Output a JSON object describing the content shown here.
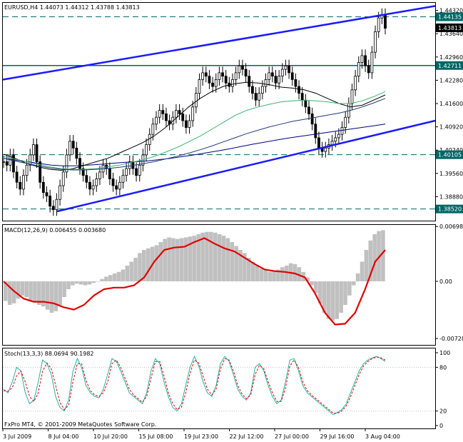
{
  "header": {
    "main": "EURUSD,H4  1.44073 1.44312 1.43788 1.43813",
    "macd": "MACD(12,26,9) 0.006455 0.003680",
    "stoch": "Stoch(13,3,3) 88.0694 90.1982",
    "copyright": "FxPro MT4, © 2001-2009 MetaQuotes Software Corp."
  },
  "chart_data": [
    {
      "type": "candlestick",
      "symbol": "EURUSD",
      "timeframe": "H4",
      "ylim": [
        1.382,
        1.445
      ],
      "ticks": [
        1.4432,
        1.4364,
        1.4296,
        1.4228,
        1.416,
        1.4092,
        1.4024,
        1.3956,
        1.3888
      ],
      "tick_labels": [
        "1.44320",
        "1.43640",
        "1.42960",
        "1.42280",
        "1.41600",
        "1.40920",
        "1.40240",
        "1.39560",
        "1.38880"
      ],
      "price_tags": [
        {
          "label": "1.44135",
          "value": 1.44135,
          "line": "dashed",
          "color": "#006666"
        },
        {
          "label": "1.43813",
          "value": 1.43813,
          "line": "none",
          "color": "#000000"
        },
        {
          "label": "1.42711",
          "value": 1.42711,
          "line": "solid",
          "color": "#006666"
        },
        {
          "label": "1.40105",
          "value": 1.40105,
          "line": "dashed",
          "color": "#006666"
        },
        {
          "label": "1.38520",
          "value": 1.3852,
          "line": "dashed",
          "color": "#006666"
        }
      ],
      "closes": [
        1.399,
        1.398,
        1.401,
        1.396,
        1.393,
        1.391,
        1.395,
        1.398,
        1.401,
        1.404,
        1.399,
        1.393,
        1.39,
        1.389,
        1.386,
        1.385,
        1.388,
        1.392,
        1.396,
        1.401,
        1.405,
        1.403,
        1.4,
        1.397,
        1.395,
        1.393,
        1.391,
        1.392,
        1.394,
        1.396,
        1.398,
        1.397,
        1.394,
        1.392,
        1.391,
        1.393,
        1.395,
        1.397,
        1.399,
        1.397,
        1.395,
        1.398,
        1.401,
        1.404,
        1.407,
        1.41,
        1.412,
        1.414,
        1.413,
        1.411,
        1.41,
        1.412,
        1.414,
        1.413,
        1.411,
        1.409,
        1.411,
        1.415,
        1.419,
        1.423,
        1.425,
        1.424,
        1.422,
        1.421,
        1.423,
        1.425,
        1.424,
        1.422,
        1.421,
        1.423,
        1.425,
        1.427,
        1.426,
        1.424,
        1.421,
        1.419,
        1.417,
        1.419,
        1.421,
        1.423,
        1.425,
        1.424,
        1.422,
        1.424,
        1.426,
        1.427,
        1.425,
        1.423,
        1.421,
        1.419,
        1.417,
        1.415,
        1.413,
        1.41,
        1.406,
        1.403,
        1.402,
        1.403,
        1.404,
        1.405,
        1.406,
        1.407,
        1.409,
        1.412,
        1.416,
        1.42,
        1.424,
        1.428,
        1.43,
        1.427,
        1.425,
        1.431,
        1.437,
        1.441,
        1.442,
        1.438
      ],
      "sma_slow": [
        1.4,
        1.3995,
        1.399,
        1.3985,
        1.398,
        1.3978,
        1.3978,
        1.398,
        1.3982,
        1.3985,
        1.3988,
        1.399,
        1.3992,
        1.3996,
        1.4,
        1.4005,
        1.401,
        1.4016,
        1.4022,
        1.4028,
        1.4035,
        1.4042,
        1.4048,
        1.4054,
        1.406,
        1.4065,
        1.407,
        1.4075,
        1.408,
        1.4085,
        1.409,
        1.4095,
        1.41
      ],
      "sma_fast": [
        1.4012,
        1.4,
        1.3985,
        1.3975,
        1.3968,
        1.3965,
        1.397,
        1.398,
        1.399,
        1.4,
        1.4015,
        1.403,
        1.4045,
        1.4065,
        1.409,
        1.412,
        1.415,
        1.4175,
        1.4195,
        1.421,
        1.4218,
        1.4222,
        1.422,
        1.4215,
        1.4208,
        1.4205,
        1.42,
        1.419,
        1.4175,
        1.416,
        1.415,
        1.4155,
        1.417,
        1.4185
      ],
      "sma_mid": [
        1.4005,
        1.3998,
        1.399,
        1.3982,
        1.3975,
        1.397,
        1.3968,
        1.3968,
        1.397,
        1.3975,
        1.398,
        1.3988,
        1.3995,
        1.4005,
        1.4018,
        1.4032,
        1.4048,
        1.4065,
        1.4085,
        1.4105,
        1.4125,
        1.414,
        1.415,
        1.4158,
        1.4165,
        1.4168,
        1.417,
        1.4168,
        1.4165,
        1.416,
        1.416,
        1.4168,
        1.418,
        1.4195
      ],
      "sma_lower": [
        1.4,
        1.3992,
        1.3985,
        1.3978,
        1.3972,
        1.3968,
        1.3966,
        1.3966,
        1.3968,
        1.397,
        1.3974,
        1.3978,
        1.3984,
        1.399,
        1.3998,
        1.4006,
        1.4015,
        1.4025,
        1.4036,
        1.4048,
        1.406,
        1.4072,
        1.4082,
        1.4092,
        1.41,
        1.4108,
        1.4114,
        1.412,
        1.4126,
        1.4132,
        1.414,
        1.415,
        1.4162,
        1.4175
      ]
    },
    {
      "type": "bar",
      "indicator": "MACD",
      "ylim": [
        -0.008,
        0.007
      ],
      "tick_labels": [
        "0.006980",
        "0.00",
        "-0.007283"
      ],
      "ticks": [
        0.00698,
        0.0,
        -0.007283
      ],
      "values": [
        -0.0025,
        -0.003,
        -0.0028,
        -0.0022,
        -0.0018,
        -0.002,
        -0.0024,
        -0.0026,
        -0.003,
        -0.0032,
        -0.0036,
        -0.004,
        -0.0038,
        -0.003,
        -0.002,
        -0.001,
        -0.0005,
        -0.0003,
        -0.0004,
        -0.0005,
        -0.0004,
        -0.0002,
        0.0,
        0.0003,
        0.0006,
        0.0008,
        0.001,
        0.0012,
        0.0015,
        0.002,
        0.0025,
        0.003,
        0.0036,
        0.004,
        0.0042,
        0.0044,
        0.0046,
        0.005,
        0.0054,
        0.0056,
        0.0055,
        0.0054,
        0.0055,
        0.0056,
        0.0057,
        0.0058,
        0.006,
        0.0062,
        0.0063,
        0.0063,
        0.0062,
        0.006,
        0.0058,
        0.0055,
        0.005,
        0.0045,
        0.004,
        0.0036,
        0.003,
        0.0025,
        0.002,
        0.0016,
        0.0014,
        0.0012,
        0.0013,
        0.0015,
        0.0018,
        0.002,
        0.0023,
        0.0022,
        0.0018,
        0.0012,
        0.0005,
        -0.0005,
        -0.0015,
        -0.0028,
        -0.004,
        -0.0048,
        -0.005,
        -0.0048,
        -0.004,
        -0.003,
        -0.0018,
        -0.0005,
        0.001,
        0.0025,
        0.004,
        0.0052,
        0.006,
        0.0064,
        0.0065
      ],
      "signal": [
        0.0,
        -0.0012,
        -0.0022,
        -0.0026,
        -0.0026,
        -0.0028,
        -0.0033,
        -0.0036,
        -0.003,
        -0.0018,
        -0.001,
        -0.0008,
        -0.0008,
        -0.0005,
        0.0005,
        0.0025,
        0.004,
        0.0043,
        0.0044,
        0.005,
        0.0055,
        0.0048,
        0.0042,
        0.0038,
        0.003,
        0.0022,
        0.0015,
        0.0013,
        0.0012,
        0.001,
        0.0005,
        -0.0015,
        -0.004,
        -0.0055,
        -0.0054,
        -0.004,
        -0.001,
        0.0025,
        0.004
      ]
    },
    {
      "type": "line",
      "indicator": "Stochastic",
      "ylim": [
        0,
        100
      ],
      "tick_labels": [
        "100",
        "80",
        "20",
        "0"
      ],
      "ticks": [
        100,
        80,
        20,
        0
      ],
      "main": [
        50,
        45,
        60,
        80,
        75,
        45,
        30,
        35,
        60,
        90,
        85,
        70,
        40,
        25,
        20,
        35,
        75,
        92,
        80,
        55,
        45,
        40,
        38,
        50,
        70,
        92,
        88,
        75,
        60,
        45,
        40,
        35,
        30,
        45,
        75,
        92,
        85,
        60,
        40,
        25,
        20,
        30,
        55,
        80,
        95,
        82,
        60,
        45,
        40,
        55,
        85,
        95,
        88,
        70,
        50,
        40,
        35,
        45,
        80,
        85,
        75,
        55,
        40,
        30,
        35,
        60,
        90,
        92,
        75,
        55,
        45,
        40,
        35,
        30,
        25,
        20,
        15,
        18,
        22,
        30,
        45,
        60,
        75,
        85,
        90,
        93,
        95,
        92,
        88
      ],
      "signal": [
        48,
        47,
        52,
        68,
        75,
        60,
        40,
        33,
        45,
        75,
        86,
        78,
        55,
        32,
        22,
        28,
        60,
        85,
        85,
        62,
        48,
        42,
        40,
        45,
        60,
        85,
        90,
        80,
        65,
        50,
        42,
        37,
        32,
        40,
        65,
        88,
        88,
        68,
        45,
        30,
        22,
        25,
        45,
        72,
        90,
        86,
        68,
        50,
        42,
        50,
        78,
        92,
        90,
        75,
        55,
        43,
        37,
        42,
        70,
        83,
        78,
        60,
        45,
        33,
        33,
        52,
        82,
        90,
        80,
        60,
        48,
        42,
        37,
        32,
        27,
        22,
        17,
        17,
        20,
        27,
        40,
        55,
        70,
        82,
        88,
        92,
        94,
        93,
        90
      ]
    },
    {
      "type": "axis",
      "x_tick_labels": [
        "3 Jul 2009",
        "8 Jul 04:00",
        "10 Jul 20:00",
        "15 Jul 08:00",
        "19 Jul 23:00",
        "22 Jul 12:00",
        "27 Jul 00:00",
        "29 Jul 16:00",
        "3 Aug 04:00"
      ]
    }
  ]
}
